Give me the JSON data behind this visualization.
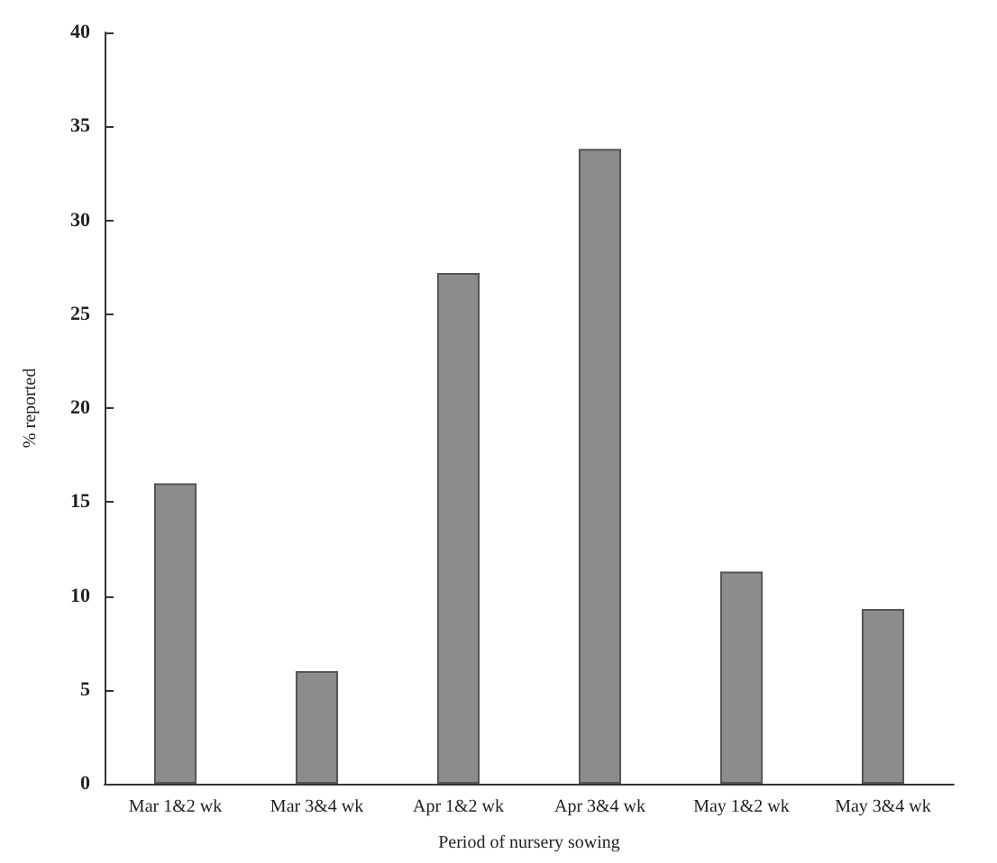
{
  "chart_data": {
    "type": "bar",
    "xlabel": "Period of nursery sowing",
    "ylabel": "% reported",
    "categories": [
      "Mar 1&2 wk",
      "Mar 3&4 wk",
      "Apr 1&2 wk",
      "Apr 3&4 wk",
      "May 1&2 wk",
      "May 3&4 wk"
    ],
    "values": [
      16,
      6,
      27.2,
      33.8,
      11.3,
      9.3
    ],
    "color": "#8c8c8c",
    "ylim": [
      0,
      40
    ],
    "yticks": [
      0,
      5,
      10,
      15,
      20,
      25,
      30,
      35,
      40
    ],
    "grid": false
  }
}
